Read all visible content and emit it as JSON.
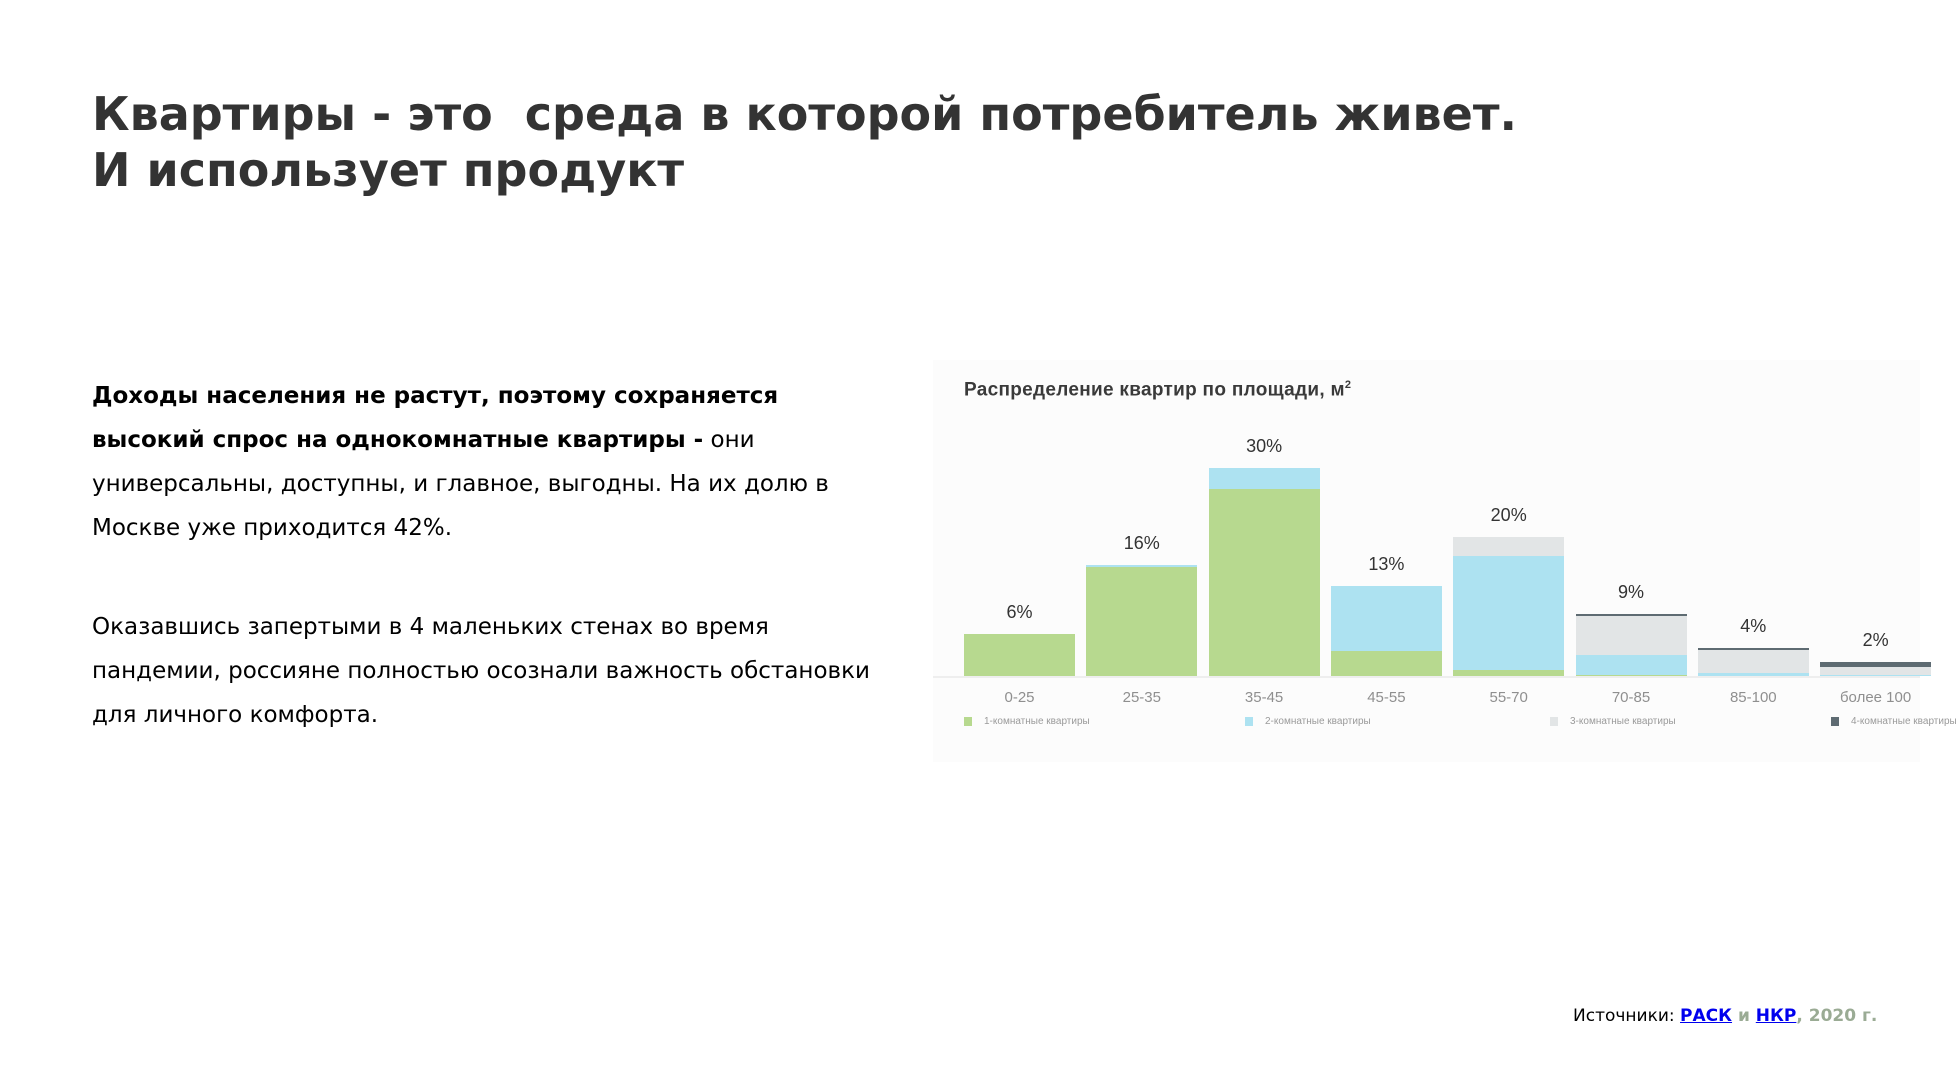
{
  "slide": {
    "title_line1": "Квартиры - это  среда в которой потребитель живет.",
    "title_line2": "И использует продукт",
    "paragraph1": {
      "bold": "Доходы населения не растут, поэтому сохраняется высокий спрос на однокомнатные квартиры -",
      "regular": " они универсальны, доступны, и главное, выгодны. На их долю в Москве уже приходится 42%."
    },
    "paragraph2": "Оказавшись запертыми в 4 маленьких стенах во время пандемии, россияне полностью осознали важность обстановки для личного комфорта.",
    "footer": {
      "prefix": "Источники: ",
      "link1": "РАСК",
      "conj": " и ",
      "link2": "НКР",
      "suffix": ", 2020 г."
    }
  },
  "colors": {
    "one_room": "#b7d98f",
    "two_room": "#ade2f1",
    "three_room": "#e2e5e6",
    "four_room": "#5e6b72",
    "link": "#0000ee",
    "footer_muted": "#9aab94",
    "title": "#333333"
  },
  "chart_data": {
    "type": "bar",
    "stacked": true,
    "title": "Распределение квартир по площади, м²",
    "title_text": "Распределение квартир по площади, м",
    "title_sup": "2",
    "xlabel": "",
    "ylabel": "",
    "ylim": [
      0,
      30
    ],
    "grid": false,
    "legend_position": "bottom",
    "categories": [
      "0-25",
      "25-35",
      "35-45",
      "45-55",
      "55-70",
      "70-85",
      "85-100",
      "более 100"
    ],
    "totals": [
      6,
      16,
      30,
      13,
      20,
      9,
      4,
      2
    ],
    "total_labels": [
      "6%",
      "16%",
      "30%",
      "13%",
      "20%",
      "9%",
      "4%",
      "2%"
    ],
    "series": [
      {
        "name": "1-комнатные квартиры",
        "color": "#b7d98f",
        "values": [
          6,
          15.8,
          27,
          3.6,
          0.9,
          0.1,
          0,
          0
        ]
      },
      {
        "name": "2-комнатные квартиры",
        "color": "#ade2f1",
        "values": [
          0,
          0.2,
          3,
          9.4,
          16.4,
          2.9,
          0.5,
          0.1
        ]
      },
      {
        "name": "3-комнатные квартиры",
        "color": "#e2e5e6",
        "values": [
          0,
          0,
          0,
          0,
          2.7,
          5.7,
          3.2,
          1.2
        ]
      },
      {
        "name": "4-комнатные квартиры",
        "color": "#5e6b72",
        "values": [
          0,
          0,
          0,
          0,
          0,
          0.3,
          0.3,
          0.7
        ]
      }
    ]
  }
}
